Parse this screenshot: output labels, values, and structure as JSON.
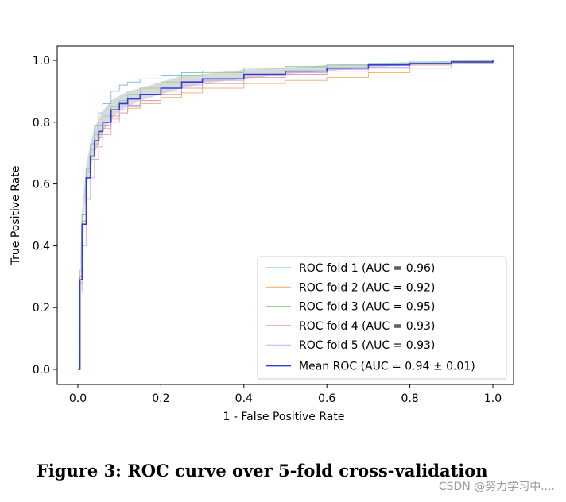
{
  "figure": {
    "caption": "Figure 3: ROC curve over 5-fold cross-validation",
    "watermark": "CSDN @努力学习中...."
  },
  "chart_data": {
    "type": "line",
    "title": "",
    "xlabel": "1 - False Positive Rate",
    "ylabel": "True Positive Rate",
    "xlim": [
      0.0,
      1.0
    ],
    "ylim": [
      0.0,
      1.0
    ],
    "xticks": [
      "0.0",
      "0.2",
      "0.4",
      "0.6",
      "0.8",
      "1.0"
    ],
    "yticks": [
      "0.0",
      "0.2",
      "0.4",
      "0.6",
      "0.8",
      "1.0"
    ],
    "grid": false,
    "legend_position": "bottom-right",
    "series": [
      {
        "name": "ROC fold 1 (AUC = 0.96)",
        "color": "#7ab3e0",
        "x": [
          0,
          0.005,
          0.01,
          0.02,
          0.03,
          0.04,
          0.05,
          0.06,
          0.08,
          0.1,
          0.12,
          0.15,
          0.2,
          0.25,
          0.3,
          0.4,
          0.5,
          0.6,
          0.7,
          0.8,
          0.9,
          1.0
        ],
        "y": [
          0,
          0.3,
          0.5,
          0.65,
          0.73,
          0.79,
          0.83,
          0.86,
          0.9,
          0.92,
          0.93,
          0.94,
          0.95,
          0.96,
          0.965,
          0.975,
          0.98,
          0.985,
          0.99,
          0.995,
          0.998,
          1.0
        ]
      },
      {
        "name": "ROC fold 2 (AUC = 0.92)",
        "color": "#f4a75e",
        "x": [
          0,
          0.005,
          0.01,
          0.02,
          0.03,
          0.04,
          0.05,
          0.06,
          0.08,
          0.1,
          0.12,
          0.15,
          0.2,
          0.25,
          0.3,
          0.4,
          0.5,
          0.6,
          0.7,
          0.8,
          0.9,
          1.0
        ],
        "y": [
          0,
          0.28,
          0.48,
          0.62,
          0.68,
          0.72,
          0.75,
          0.78,
          0.81,
          0.83,
          0.845,
          0.86,
          0.88,
          0.895,
          0.91,
          0.925,
          0.935,
          0.945,
          0.96,
          0.975,
          0.99,
          1.0
        ]
      },
      {
        "name": "ROC fold 3 (AUC = 0.95)",
        "color": "#8fcf8f",
        "x": [
          0,
          0.005,
          0.01,
          0.02,
          0.03,
          0.04,
          0.05,
          0.06,
          0.08,
          0.1,
          0.12,
          0.15,
          0.2,
          0.25,
          0.3,
          0.4,
          0.5,
          0.6,
          0.7,
          0.8,
          0.9,
          1.0
        ],
        "y": [
          0,
          0.32,
          0.5,
          0.64,
          0.71,
          0.76,
          0.79,
          0.82,
          0.85,
          0.87,
          0.89,
          0.91,
          0.93,
          0.95,
          0.96,
          0.975,
          0.98,
          0.985,
          0.99,
          0.995,
          0.998,
          1.0
        ]
      },
      {
        "name": "ROC fold 4 (AUC = 0.93)",
        "color": "#e88a8a",
        "x": [
          0,
          0.005,
          0.01,
          0.02,
          0.03,
          0.04,
          0.05,
          0.06,
          0.08,
          0.1,
          0.12,
          0.15,
          0.2,
          0.25,
          0.3,
          0.4,
          0.5,
          0.6,
          0.7,
          0.8,
          0.9,
          1.0
        ],
        "y": [
          0,
          0.3,
          0.48,
          0.62,
          0.69,
          0.73,
          0.76,
          0.79,
          0.82,
          0.84,
          0.855,
          0.87,
          0.89,
          0.91,
          0.925,
          0.945,
          0.955,
          0.965,
          0.975,
          0.985,
          0.993,
          1.0
        ]
      },
      {
        "name": "ROC fold 5 (AUC = 0.93)",
        "color": "#c9a8de",
        "x": [
          0,
          0.005,
          0.01,
          0.02,
          0.03,
          0.04,
          0.05,
          0.06,
          0.08,
          0.1,
          0.12,
          0.15,
          0.2,
          0.25,
          0.3,
          0.4,
          0.5,
          0.6,
          0.7,
          0.8,
          0.9,
          1.0
        ],
        "y": [
          0,
          0.25,
          0.4,
          0.55,
          0.62,
          0.68,
          0.72,
          0.76,
          0.8,
          0.83,
          0.85,
          0.87,
          0.9,
          0.92,
          0.935,
          0.95,
          0.96,
          0.97,
          0.978,
          0.985,
          0.993,
          1.0
        ]
      },
      {
        "name": "Mean ROC (AUC = 0.94 ± 0.01)",
        "color": "#2b3fe0",
        "mean": true,
        "x": [
          0,
          0.005,
          0.01,
          0.02,
          0.03,
          0.04,
          0.05,
          0.06,
          0.08,
          0.1,
          0.12,
          0.15,
          0.2,
          0.25,
          0.3,
          0.4,
          0.5,
          0.6,
          0.7,
          0.8,
          0.9,
          1.0
        ],
        "y": [
          0,
          0.29,
          0.47,
          0.62,
          0.69,
          0.74,
          0.77,
          0.8,
          0.84,
          0.86,
          0.875,
          0.89,
          0.91,
          0.93,
          0.94,
          0.955,
          0.965,
          0.975,
          0.985,
          0.99,
          0.995,
          1.0
        ]
      }
    ],
    "confidence_band": {
      "x": [
        0,
        0.005,
        0.01,
        0.02,
        0.03,
        0.04,
        0.05,
        0.06,
        0.08,
        0.1,
        0.12,
        0.15,
        0.2,
        0.25,
        0.3,
        0.4,
        0.5,
        0.6,
        0.7,
        0.8,
        0.9,
        1.0
      ],
      "lower": [
        0,
        0.26,
        0.43,
        0.58,
        0.65,
        0.7,
        0.73,
        0.765,
        0.81,
        0.835,
        0.85,
        0.87,
        0.89,
        0.91,
        0.925,
        0.94,
        0.955,
        0.965,
        0.977,
        0.985,
        0.992,
        1.0
      ],
      "upper": [
        0,
        0.32,
        0.51,
        0.66,
        0.73,
        0.78,
        0.81,
        0.835,
        0.87,
        0.885,
        0.9,
        0.91,
        0.93,
        0.95,
        0.955,
        0.97,
        0.975,
        0.985,
        0.99,
        0.995,
        0.998,
        1.0
      ],
      "color": "#bfbfbf"
    }
  }
}
